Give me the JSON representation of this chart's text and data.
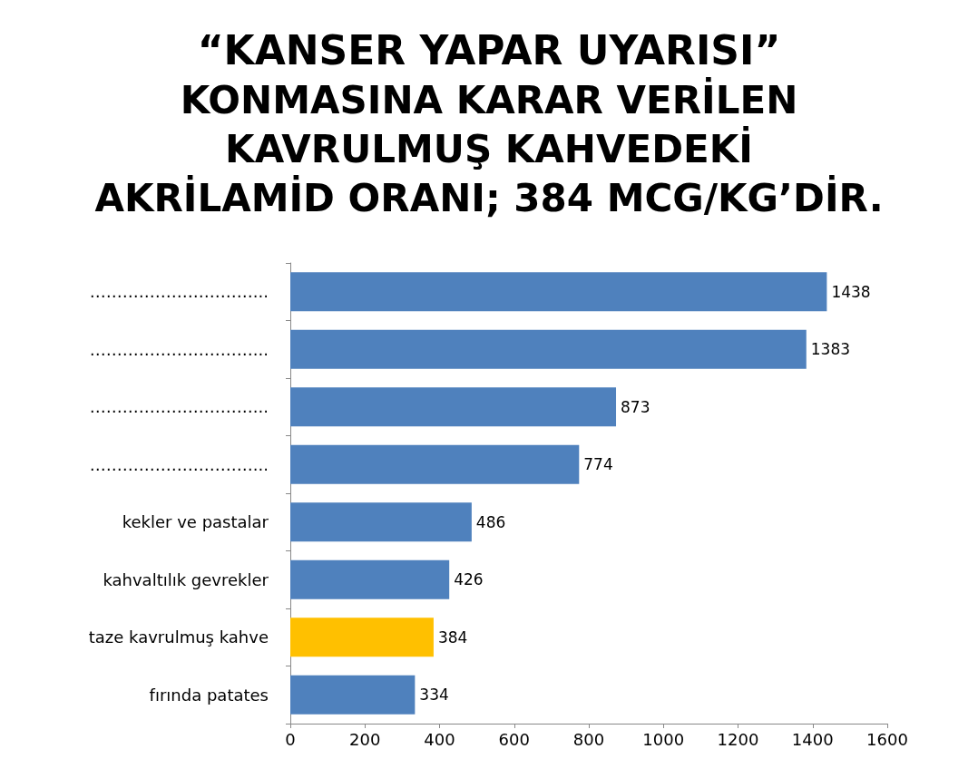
{
  "chart_data": {
    "type": "bar",
    "orientation": "horizontal",
    "title": "“KANSER YAPAR UYARISI”\nKONMASINA KARAR VERİLEN\nKAVRULMUŞ KAHVEDEKİ\nAKRİLAMİD ORANI; 384 MCG/KG’DİR.",
    "categories": [
      "…………………………...",
      "…………………………...",
      "…………………………...",
      "…………………………...",
      "kekler ve pastalar",
      "kahvaltılık gevrekler",
      "taze kavrulmuş kahve",
      "fırında patates"
    ],
    "values": [
      1438,
      1383,
      873,
      774,
      486,
      426,
      384,
      334
    ],
    "colors": [
      "#4f81bd",
      "#4f81bd",
      "#4f81bd",
      "#4f81bd",
      "#4f81bd",
      "#4f81bd",
      "#ffc000",
      "#4f81bd"
    ],
    "xlim": [
      0,
      1600
    ],
    "xticks": [
      0,
      200,
      400,
      600,
      800,
      1000,
      1200,
      1400,
      1600
    ],
    "data_labels": true,
    "grid": false
  }
}
